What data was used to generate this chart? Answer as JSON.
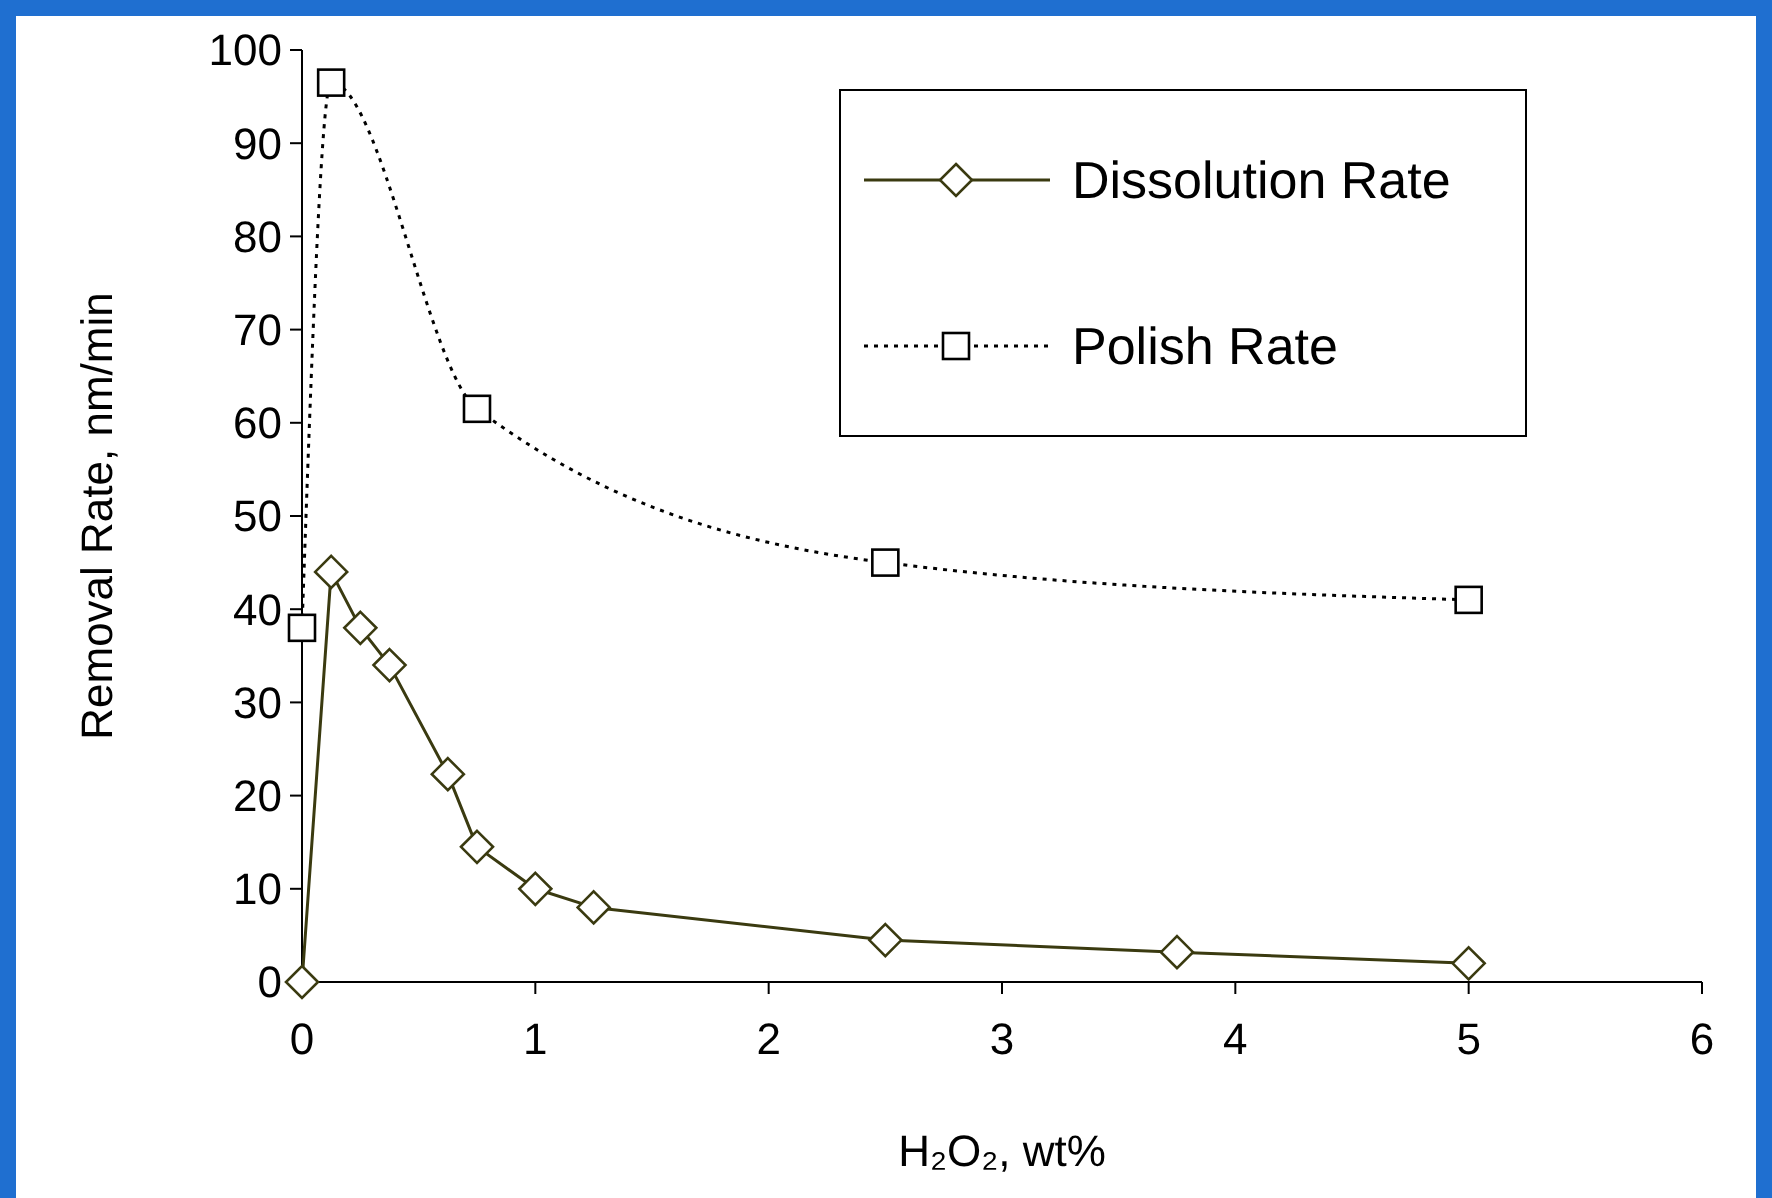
{
  "chart_data": {
    "type": "line",
    "xlabel": "H₂O₂, wt%",
    "ylabel": "Removal Rate, nm/min",
    "xlim": [
      0,
      6
    ],
    "xticks": [
      0,
      1,
      2,
      3,
      4,
      5,
      6
    ],
    "ylim": [
      0,
      100
    ],
    "yticks": [
      0,
      10,
      20,
      30,
      40,
      50,
      60,
      70,
      80,
      90,
      100
    ],
    "grid": false,
    "legend": "top right",
    "series": [
      {
        "name": "Dissolution Rate",
        "color": "#3a3a10",
        "marker": "diamond",
        "line_style": "solid",
        "x": [
          0,
          0.125,
          0.25,
          0.375,
          0.625,
          0.75,
          1,
          1.25,
          2.5,
          3.75,
          5
        ],
        "values": [
          0,
          44,
          38,
          34,
          22.3,
          14.5,
          10,
          8,
          4.5,
          3.2,
          2
        ]
      },
      {
        "name": "Polish Rate",
        "color": "#000000",
        "marker": "square",
        "line_style": "dotted",
        "x": [
          0,
          0.125,
          0.75,
          2.5,
          5
        ],
        "values": [
          38,
          96.5,
          61.5,
          45,
          41
        ]
      }
    ]
  }
}
